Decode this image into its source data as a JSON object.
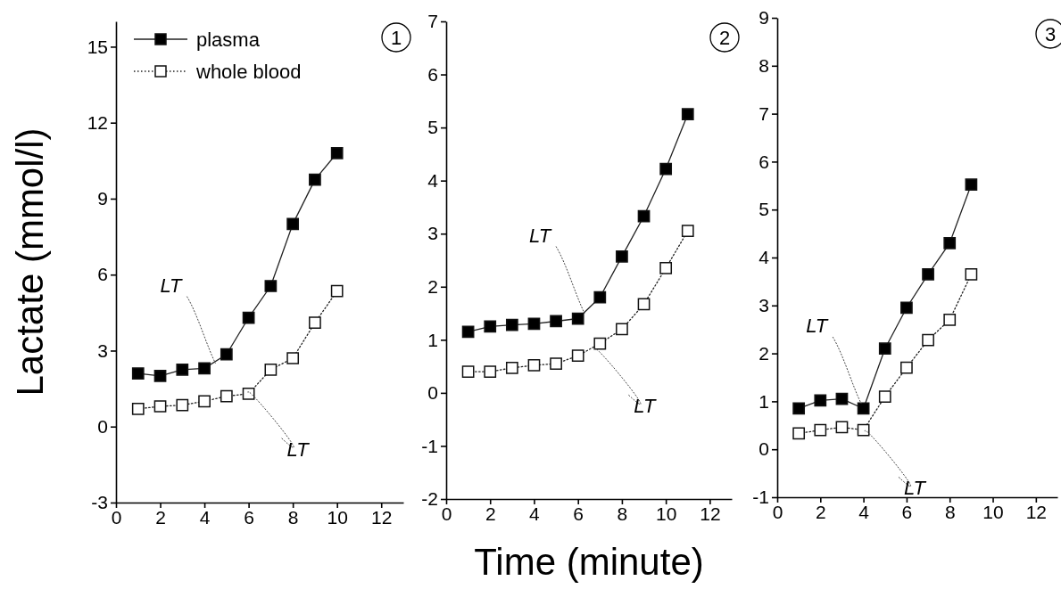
{
  "chart_data": [
    {
      "type": "line",
      "title": "1",
      "ylabel": "Lactate (mmol/l)",
      "x": [
        1,
        2,
        3,
        4,
        5,
        6,
        7,
        8,
        9,
        10
      ],
      "xlim": [
        0,
        13
      ],
      "xticks": [
        0,
        2,
        4,
        6,
        8,
        10,
        12
      ],
      "ylim": [
        -3,
        16
      ],
      "yticks": [
        -3,
        0,
        3,
        6,
        9,
        12,
        15
      ],
      "marker": "square",
      "legend": "top left",
      "series": [
        {
          "name": "plasma",
          "color": "#000000",
          "line_style": "solid",
          "values": [
            2.1,
            2.0,
            2.25,
            2.3,
            2.85,
            4.3,
            5.55,
            8.0,
            9.75,
            10.8
          ]
        },
        {
          "name": "whole blood",
          "color": "#ffffff",
          "line_style": "dotted",
          "values": [
            0.7,
            0.8,
            0.85,
            1.0,
            1.2,
            1.3,
            2.25,
            2.7,
            4.1,
            5.35
          ]
        }
      ],
      "annotations": [
        {
          "text": "LT",
          "x": 4.5,
          "y": 2.5
        },
        {
          "text": "LT",
          "x": 6,
          "y": 1.3
        }
      ]
    },
    {
      "type": "line",
      "title": "2",
      "xlabel": "Time (minute)",
      "x": [
        1,
        2,
        3,
        4,
        5,
        6,
        7,
        8,
        9,
        10,
        11
      ],
      "xlim": [
        0,
        13
      ],
      "xticks": [
        0,
        2,
        4,
        6,
        8,
        10,
        12
      ],
      "ylim": [
        -2,
        7
      ],
      "yticks": [
        -2,
        -1,
        0,
        1,
        2,
        3,
        4,
        5,
        6,
        7
      ],
      "marker": "square",
      "series": [
        {
          "color": "#000000",
          "line_style": "solid",
          "values": [
            1.15,
            1.25,
            1.28,
            1.3,
            1.35,
            1.4,
            1.8,
            2.57,
            3.33,
            4.22,
            5.25
          ]
        },
        {
          "color": "#ffffff",
          "line_style": "dotted",
          "values": [
            0.4,
            0.4,
            0.47,
            0.52,
            0.55,
            0.7,
            0.93,
            1.2,
            1.67,
            2.35,
            3.05
          ]
        }
      ],
      "annotations": [
        {
          "text": "LT",
          "x": 6.3,
          "y": 1.5
        },
        {
          "text": "LT",
          "x": 6.8,
          "y": 0.8
        }
      ]
    },
    {
      "type": "line",
      "title": "3",
      "x": [
        1,
        2,
        3,
        4,
        5,
        6,
        7,
        8,
        9
      ],
      "xlim": [
        0,
        13
      ],
      "xticks": [
        0,
        2,
        4,
        6,
        8,
        10,
        12
      ],
      "ylim": [
        -1,
        9
      ],
      "yticks": [
        -1,
        0,
        1,
        2,
        3,
        4,
        5,
        6,
        7,
        8,
        9
      ],
      "marker": "square",
      "series": [
        {
          "color": "#000000",
          "line_style": "solid",
          "values": [
            0.85,
            1.02,
            1.05,
            0.85,
            2.1,
            2.95,
            3.65,
            4.3,
            5.52
          ]
        },
        {
          "color": "#ffffff",
          "line_style": "dotted",
          "values": [
            0.33,
            0.4,
            0.46,
            0.4,
            1.1,
            1.7,
            2.28,
            2.7,
            3.65
          ]
        }
      ],
      "annotations": [
        {
          "text": "LT",
          "x": 3.9,
          "y": 0.95
        },
        {
          "text": "LT",
          "x": 4.1,
          "y": 0.35
        }
      ]
    }
  ]
}
